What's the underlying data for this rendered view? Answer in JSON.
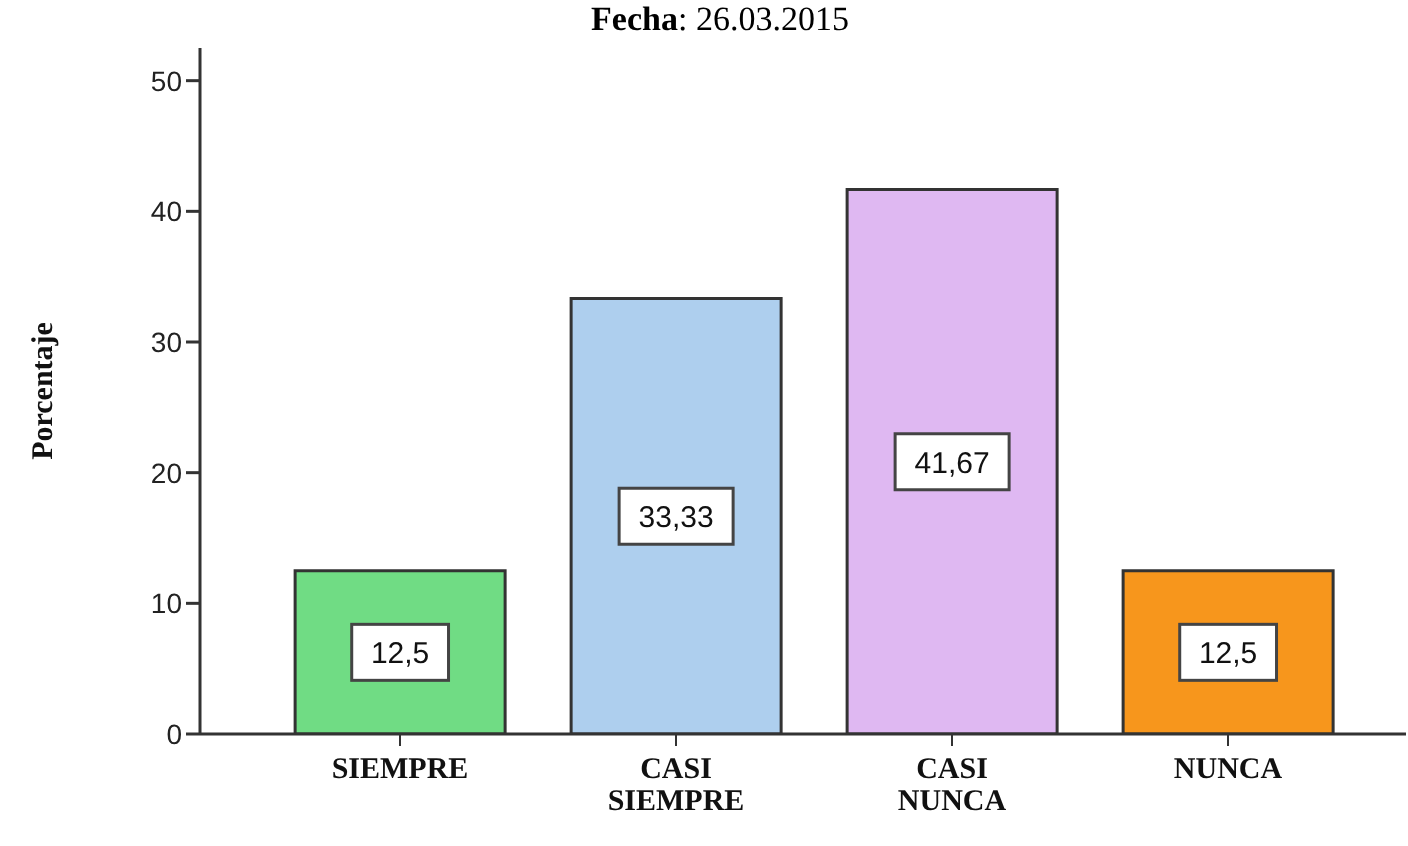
{
  "chart_data": {
    "type": "bar",
    "title": "Fecha: 26.03.2015",
    "ylabel": "Porcentaje",
    "categories": [
      "SIEMPRE",
      "CASI SIEMPRE",
      "CASI NUNCA",
      "NUNCA"
    ],
    "values": [
      12.5,
      33.33,
      41.67,
      12.5
    ],
    "value_labels": [
      "12,5",
      "33,33",
      "41,67",
      "12,5"
    ],
    "colors": [
      "#70dc84",
      "#aecfee",
      "#dfb8f2",
      "#f7961c"
    ],
    "ylim": [
      0,
      52.5
    ],
    "yticks": [
      0,
      10,
      20,
      30,
      40,
      50
    ]
  }
}
